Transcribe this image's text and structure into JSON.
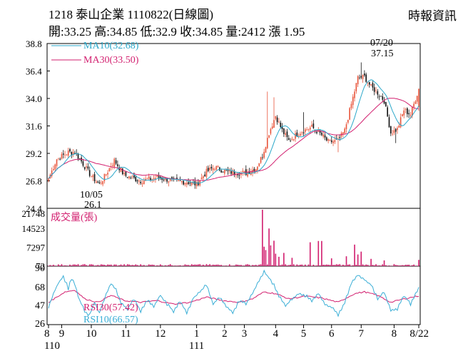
{
  "header": {
    "title": "1218  泰山企業 1110822(日線圖)",
    "quote": "開:33.25 高:34.85 低:32.9 收:34.85 量:2412 漲 1.95",
    "source": "時報資訊"
  },
  "colors": {
    "up": "#e8543a",
    "down": "#111111",
    "ma10": "#2aa7c9",
    "ma30": "#d21f6f",
    "volume": "#d21f6f",
    "rsi10": "#3aaed6",
    "rsi30": "#d21f6f"
  },
  "chart_data": [
    {
      "type": "candlestick",
      "panel": "price",
      "ylim": [
        24.4,
        38.8
      ],
      "y_ticks": [
        "38.8",
        "36.4",
        "34.0",
        "31.6",
        "29.2",
        "26.8",
        "24.4"
      ],
      "legend": [
        {
          "key": "ma10",
          "label": "MA10(32.68)"
        },
        {
          "key": "ma30",
          "label": "MA30(33.50)"
        }
      ],
      "annotations": [
        {
          "date": "07/20",
          "value": "37.15",
          "kind": "high"
        },
        {
          "date": "10/05",
          "value": "26.1",
          "kind": "low"
        }
      ],
      "last_bar": {
        "open": 33.25,
        "high": 34.85,
        "low": 32.9,
        "close": 34.85
      },
      "close_anchors": [
        [
          0,
          27.0
        ],
        [
          5,
          28.7
        ],
        [
          12,
          29.3
        ],
        [
          16,
          29.3
        ],
        [
          20,
          28.5
        ],
        [
          26,
          27.2
        ],
        [
          31,
          26.5
        ],
        [
          35,
          27.4
        ],
        [
          40,
          28.6
        ],
        [
          46,
          27.3
        ],
        [
          56,
          26.8
        ],
        [
          66,
          27.1
        ],
        [
          76,
          26.8
        ],
        [
          84,
          26.7
        ],
        [
          90,
          26.5
        ],
        [
          96,
          27.6
        ],
        [
          101,
          28.0
        ],
        [
          108,
          27.6
        ],
        [
          114,
          27.5
        ],
        [
          120,
          27.5
        ],
        [
          126,
          27.9
        ],
        [
          130,
          29.0
        ],
        [
          134,
          31.0
        ],
        [
          138,
          32.5
        ],
        [
          142,
          31.2
        ],
        [
          146,
          30.3
        ],
        [
          152,
          31.0
        ],
        [
          160,
          31.5
        ],
        [
          166,
          30.8
        ],
        [
          170,
          30.2
        ],
        [
          176,
          30.3
        ],
        [
          180,
          31.2
        ],
        [
          184,
          33.5
        ],
        [
          188,
          35.8
        ],
        [
          192,
          35.9
        ],
        [
          196,
          35.0
        ],
        [
          200,
          34.5
        ],
        [
          204,
          33.8
        ],
        [
          208,
          31.0
        ],
        [
          212,
          31.3
        ],
        [
          216,
          33.0
        ],
        [
          220,
          32.6
        ],
        [
          225,
          34.85
        ]
      ],
      "spikes": [
        {
          "i": 133,
          "high": 34.6
        },
        {
          "i": 137,
          "high": 34.1
        },
        {
          "i": 155,
          "high": 32.8
        },
        {
          "i": 176,
          "low": 29.3
        },
        {
          "i": 190,
          "high": 37.15
        },
        {
          "i": 211,
          "low": 30.1
        }
      ]
    },
    {
      "type": "bar",
      "panel": "volume",
      "ylabel": "成交量(張)",
      "ylim": [
        0,
        21748
      ],
      "y_ticks": [
        "21748",
        "14523",
        "7297",
        "72"
      ],
      "spikes": [
        {
          "i": 130,
          "value": 21748
        },
        {
          "i": 131,
          "value": 7500
        },
        {
          "i": 132,
          "value": 6200
        },
        {
          "i": 134,
          "value": 14523
        },
        {
          "i": 135,
          "value": 8000
        },
        {
          "i": 137,
          "value": 9800
        },
        {
          "i": 138,
          "value": 4800
        },
        {
          "i": 140,
          "value": 3600
        },
        {
          "i": 143,
          "value": 5100
        },
        {
          "i": 148,
          "value": 3200
        },
        {
          "i": 159,
          "value": 9200
        },
        {
          "i": 164,
          "value": 9700
        },
        {
          "i": 166,
          "value": 9700
        },
        {
          "i": 172,
          "value": 3000
        },
        {
          "i": 181,
          "value": 3800
        },
        {
          "i": 186,
          "value": 8300
        },
        {
          "i": 188,
          "value": 4500
        },
        {
          "i": 190,
          "value": 5600
        },
        {
          "i": 196,
          "value": 2800
        },
        {
          "i": 204,
          "value": 2200
        },
        {
          "i": 225,
          "value": 2412
        }
      ]
    },
    {
      "type": "line",
      "panel": "rsi",
      "ylim": [
        26,
        90
      ],
      "y_ticks": [
        "90",
        "68",
        "47",
        "26"
      ],
      "legend": [
        {
          "key": "rsi30",
          "label": "RSI30(57.42)"
        },
        {
          "key": "rsi10",
          "label": "RSI10(66.57)"
        }
      ],
      "rsi10_anchors": [
        [
          0,
          45
        ],
        [
          3,
          60
        ],
        [
          6,
          72
        ],
        [
          9,
          80
        ],
        [
          12,
          66
        ],
        [
          14,
          78
        ],
        [
          16,
          70
        ],
        [
          19,
          52
        ],
        [
          22,
          40
        ],
        [
          25,
          35
        ],
        [
          28,
          50
        ],
        [
          31,
          38
        ],
        [
          35,
          60
        ],
        [
          38,
          72
        ],
        [
          41,
          64
        ],
        [
          44,
          50
        ],
        [
          48,
          42
        ],
        [
          52,
          54
        ],
        [
          56,
          40
        ],
        [
          60,
          52
        ],
        [
          64,
          45
        ],
        [
          68,
          58
        ],
        [
          72,
          48
        ],
        [
          76,
          40
        ],
        [
          80,
          52
        ],
        [
          84,
          38
        ],
        [
          88,
          55
        ],
        [
          92,
          62
        ],
        [
          96,
          70
        ],
        [
          100,
          48
        ],
        [
          104,
          56
        ],
        [
          108,
          46
        ],
        [
          112,
          38
        ],
        [
          116,
          52
        ],
        [
          120,
          48
        ],
        [
          124,
          60
        ],
        [
          128,
          75
        ],
        [
          131,
          85
        ],
        [
          134,
          78
        ],
        [
          137,
          70
        ],
        [
          140,
          58
        ],
        [
          144,
          46
        ],
        [
          148,
          54
        ],
        [
          152,
          60
        ],
        [
          156,
          58
        ],
        [
          160,
          52
        ],
        [
          164,
          60
        ],
        [
          168,
          48
        ],
        [
          172,
          44
        ],
        [
          176,
          36
        ],
        [
          180,
          50
        ],
        [
          184,
          72
        ],
        [
          188,
          82
        ],
        [
          192,
          76
        ],
        [
          196,
          70
        ],
        [
          200,
          54
        ],
        [
          204,
          62
        ],
        [
          208,
          40
        ],
        [
          212,
          42
        ],
        [
          216,
          58
        ],
        [
          220,
          48
        ],
        [
          225,
          66.57
        ]
      ],
      "rsi30_anchors": [
        [
          0,
          50
        ],
        [
          10,
          62
        ],
        [
          16,
          64
        ],
        [
          22,
          54
        ],
        [
          30,
          50
        ],
        [
          38,
          58
        ],
        [
          46,
          52
        ],
        [
          56,
          50
        ],
        [
          66,
          52
        ],
        [
          76,
          48
        ],
        [
          86,
          50
        ],
        [
          96,
          56
        ],
        [
          106,
          52
        ],
        [
          116,
          50
        ],
        [
          124,
          54
        ],
        [
          131,
          62
        ],
        [
          138,
          60
        ],
        [
          146,
          54
        ],
        [
          156,
          57
        ],
        [
          166,
          55
        ],
        [
          176,
          50
        ],
        [
          186,
          60
        ],
        [
          192,
          62
        ],
        [
          200,
          58
        ],
        [
          208,
          50
        ],
        [
          216,
          54
        ],
        [
          225,
          57.42
        ]
      ]
    }
  ],
  "x_ticks": [
    {
      "label": "8",
      "i": 0
    },
    {
      "label": "9",
      "i": 8
    },
    {
      "label": "10",
      "i": 26
    },
    {
      "label": "11",
      "i": 47
    },
    {
      "label": "12",
      "i": 68
    },
    {
      "label": "1",
      "i": 90
    },
    {
      "label": "2",
      "i": 107
    },
    {
      "label": "3",
      "i": 119
    },
    {
      "label": "4",
      "i": 138
    },
    {
      "label": "5",
      "i": 155
    },
    {
      "label": "6",
      "i": 172
    },
    {
      "label": "7",
      "i": 190
    },
    {
      "label": "8",
      "i": 210
    },
    {
      "label": "8/22",
      "i": 225
    }
  ],
  "year_labels": [
    {
      "label": "110",
      "i": 4
    },
    {
      "label": "111",
      "i": 90
    }
  ]
}
